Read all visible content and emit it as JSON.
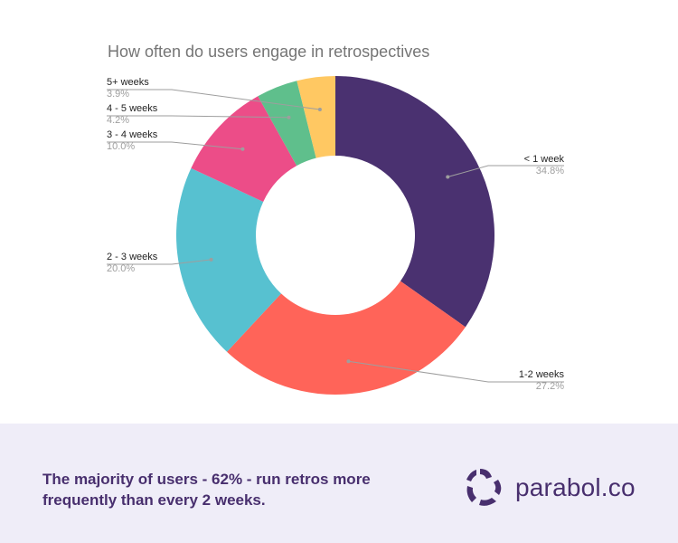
{
  "chart_data": {
    "type": "pie",
    "variant": "donut",
    "title": "How often do users engage in retrospectives",
    "categories": [
      "< 1 week",
      "1-2 weeks",
      "2 - 3 weeks",
      "3 - 4 weeks",
      "4 - 5 weeks",
      "5+ weeks"
    ],
    "values": [
      34.8,
      27.2,
      20.0,
      10.0,
      4.2,
      3.9
    ],
    "value_labels": [
      "34.8%",
      "27.2%",
      "20.0%",
      "10.0%",
      "4.2%",
      "3.9%"
    ],
    "colors": [
      "#4a3170",
      "#ff6459",
      "#57c1d0",
      "#ec4d88",
      "#5fbf8c",
      "#ffc862"
    ],
    "start_angle": "12 o'clock, clockwise",
    "legend_position": "labels with leader lines"
  },
  "labels": [
    {
      "name": "< 1 week",
      "pct": "34.8%"
    },
    {
      "name": "1-2 weeks",
      "pct": "27.2%"
    },
    {
      "name": "2 - 3 weeks",
      "pct": "20.0%"
    },
    {
      "name": "3 - 4 weeks",
      "pct": "10.0%"
    },
    {
      "name": "4 - 5 weeks",
      "pct": "4.2%"
    },
    {
      "name": "5+ weeks",
      "pct": "3.9%"
    }
  ],
  "footer": {
    "text": "The majority of users - 62% - run retros more frequently than every 2 weeks.",
    "brand": "parabol.co",
    "brand_color": "#482f6e",
    "background": "#efedf8"
  }
}
